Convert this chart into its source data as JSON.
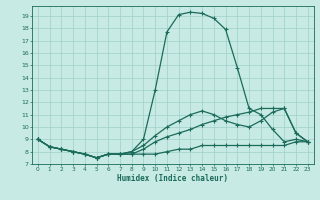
{
  "xlabel": "Humidex (Indice chaleur)",
  "xlim": [
    -0.5,
    23.5
  ],
  "ylim": [
    7,
    19.8
  ],
  "yticks": [
    7,
    8,
    9,
    10,
    11,
    12,
    13,
    14,
    15,
    16,
    17,
    18,
    19
  ],
  "xticks": [
    0,
    1,
    2,
    3,
    4,
    5,
    6,
    7,
    8,
    9,
    10,
    11,
    12,
    13,
    14,
    15,
    16,
    17,
    18,
    19,
    20,
    21,
    22,
    23
  ],
  "background_color": "#c8eae4",
  "grid_color": "#9ecfc7",
  "line_color": "#1a6b5a",
  "lines": [
    {
      "x": [
        0,
        1,
        2,
        3,
        4,
        5,
        6,
        7,
        8,
        9,
        10,
        11,
        12,
        13,
        14,
        15,
        16,
        17,
        18,
        19,
        20,
        21,
        22,
        23
      ],
      "y": [
        9.0,
        8.4,
        8.2,
        8.0,
        7.8,
        7.5,
        7.8,
        7.8,
        8.0,
        9.0,
        13.0,
        17.7,
        19.1,
        19.3,
        19.2,
        18.8,
        17.9,
        14.8,
        11.5,
        11.0,
        9.8,
        8.8,
        9.0,
        8.8
      ]
    },
    {
      "x": [
        0,
        1,
        2,
        3,
        4,
        5,
        6,
        7,
        8,
        9,
        10,
        11,
        12,
        13,
        14,
        15,
        16,
        17,
        18,
        19,
        20,
        21,
        22,
        23
      ],
      "y": [
        9.0,
        8.4,
        8.2,
        8.0,
        7.8,
        7.5,
        7.8,
        7.8,
        8.0,
        8.5,
        9.3,
        10.0,
        10.5,
        11.0,
        11.3,
        11.0,
        10.5,
        10.2,
        10.0,
        10.5,
        11.2,
        11.5,
        9.5,
        8.8
      ]
    },
    {
      "x": [
        0,
        1,
        2,
        3,
        4,
        5,
        6,
        7,
        8,
        9,
        10,
        11,
        12,
        13,
        14,
        15,
        16,
        17,
        18,
        19,
        20,
        21,
        22,
        23
      ],
      "y": [
        9.0,
        8.4,
        8.2,
        8.0,
        7.8,
        7.5,
        7.8,
        7.8,
        7.8,
        8.2,
        8.8,
        9.2,
        9.5,
        9.8,
        10.2,
        10.5,
        10.8,
        11.0,
        11.2,
        11.5,
        11.5,
        11.5,
        9.5,
        8.8
      ]
    },
    {
      "x": [
        0,
        1,
        2,
        3,
        4,
        5,
        6,
        7,
        8,
        9,
        10,
        11,
        12,
        13,
        14,
        15,
        16,
        17,
        18,
        19,
        20,
        21,
        22,
        23
      ],
      "y": [
        9.0,
        8.4,
        8.2,
        8.0,
        7.8,
        7.5,
        7.8,
        7.8,
        7.8,
        7.8,
        7.8,
        8.0,
        8.2,
        8.2,
        8.5,
        8.5,
        8.5,
        8.5,
        8.5,
        8.5,
        8.5,
        8.5,
        8.8,
        8.8
      ]
    }
  ]
}
